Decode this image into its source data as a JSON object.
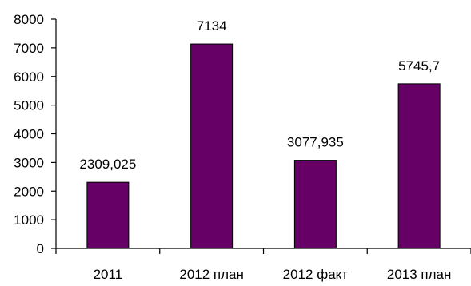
{
  "chart_data": {
    "type": "bar",
    "title": "",
    "xlabel": "",
    "ylabel": "",
    "categories": [
      "2011",
      "2012 план",
      "2012 факт",
      "2013 план"
    ],
    "values": [
      2309.025,
      7134,
      3077.935,
      5745.7
    ],
    "data_labels": [
      "2309,025",
      "7134",
      "3077,935",
      "5745,7"
    ],
    "ylim": [
      0,
      8000
    ],
    "y_ticks": [
      0,
      1000,
      2000,
      3000,
      4000,
      5000,
      6000,
      7000,
      8000
    ],
    "y_tick_labels": [
      "0",
      "1000",
      "2000",
      "3000",
      "4000",
      "5000",
      "6000",
      "7000",
      "8000"
    ],
    "grid": false,
    "legend": "none",
    "colors": {
      "bar_fill": "#660066",
      "bar_stroke": "#000000",
      "axis": "#000000",
      "text": "#000000"
    }
  }
}
